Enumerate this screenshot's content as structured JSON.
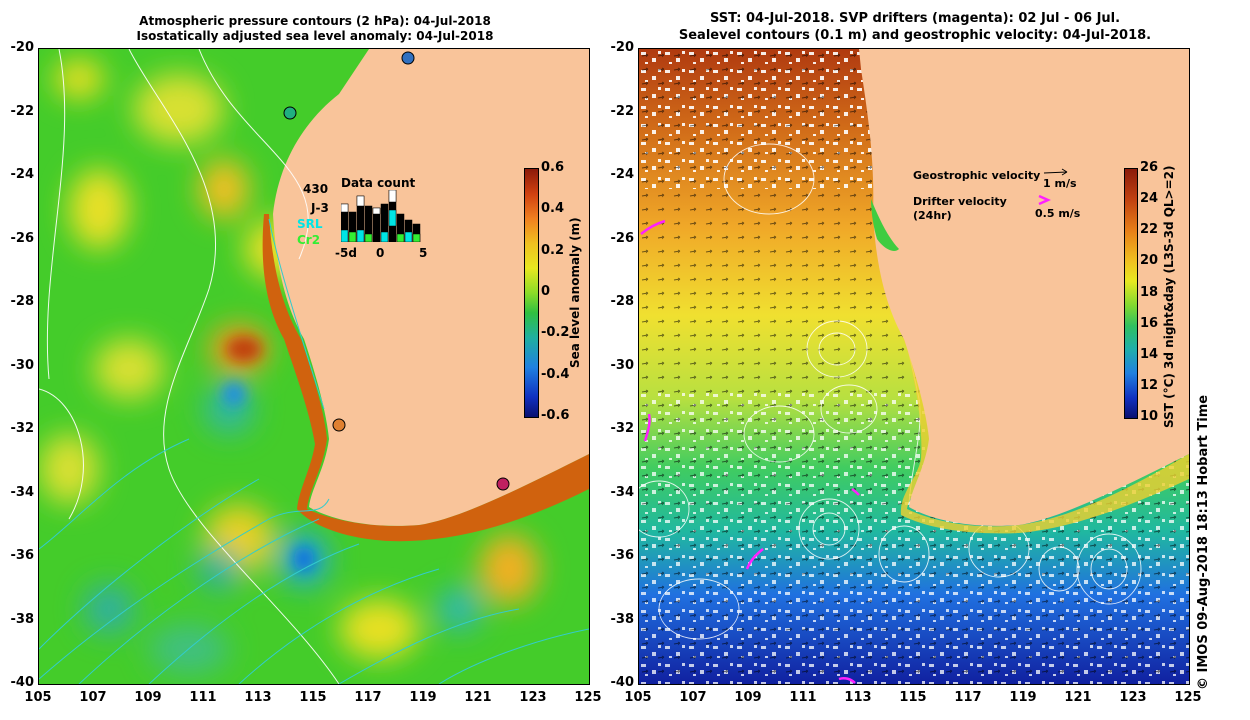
{
  "left_panel": {
    "title_line1": "Atmospheric pressure contours (2 hPa): 04-Jul-2018",
    "title_line2": "Isostatically adjusted sea level anomaly: 04-Jul-2018",
    "colorbar_label": "Sea level anomaly (m)",
    "colorbar_ticks": [
      "0.6",
      "0.4",
      "0.2",
      "0",
      "-0.2",
      "-0.4",
      "-0.6"
    ],
    "inset": {
      "count": "430",
      "title": "Data count",
      "labels": [
        {
          "text": "J-3",
          "color": "#000000"
        },
        {
          "text": "SRL",
          "color": "#00e5e5"
        },
        {
          "text": "Cr2",
          "color": "#33ee33"
        }
      ],
      "x_ticks": [
        "-5d",
        "0",
        "5"
      ]
    }
  },
  "right_panel": {
    "title_line1": "SST: 04-Jul-2018. SVP drifters (magenta): 02 Jul - 06 Jul.",
    "title_line2": "Sealevel contours (0.1 m) and geostrophic velocity: 04-Jul-2018.",
    "colorbar_label": "SST (°C) 3d night&day (L3S-3d QL>=2)",
    "colorbar_ticks": [
      "26",
      "24",
      "22",
      "20",
      "18",
      "16",
      "14",
      "12",
      "10"
    ],
    "legend": {
      "geo_label": "Geostrophic velocity",
      "geo_scale": "1 m/s",
      "drifter_label": "Drifter velocity",
      "drifter_sub": "(24hr)",
      "drifter_scale": "0.5 m/s"
    }
  },
  "axes": {
    "lat_ticks": [
      "-20",
      "-22",
      "-24",
      "-26",
      "-28",
      "-30",
      "-32",
      "-34",
      "-36",
      "-38",
      "-40"
    ],
    "lon_ticks": [
      "105",
      "107",
      "109",
      "111",
      "113",
      "115",
      "117",
      "119",
      "121",
      "123",
      "125"
    ]
  },
  "credit": "© IMOS 09-Aug-2018 18:13 Hobart Time",
  "colors": {
    "land": "#f9c49a",
    "ocean_green": "#3ccc2a",
    "coast_orange": "#d0620e",
    "drifter": "#ff20ff",
    "contour": "#ffffff",
    "cyan_contour": "#33cccc"
  }
}
